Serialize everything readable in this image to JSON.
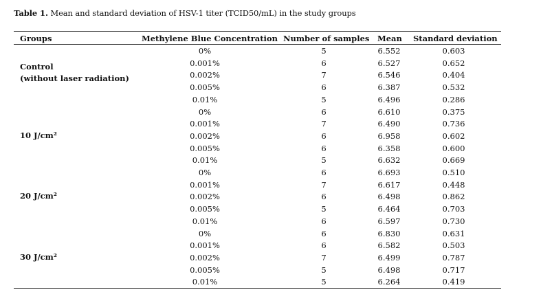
{
  "caption": {
    "label": "Table 1.",
    "text": " Mean and standard deviation of HSV-1 titer (TCID50/mL) in the study groups"
  },
  "columns": [
    "Groups",
    "Methylene Blue Concentration",
    "Number of samples",
    "Mean",
    "Standard deviation"
  ],
  "groups": [
    {
      "name_line1": "Control",
      "name_line2": "(without laser radiation)",
      "rows": [
        {
          "conc": "0%",
          "n": "5",
          "mean": "6.552",
          "sd": "0.603"
        },
        {
          "conc": "0.001%",
          "n": "6",
          "mean": "6.527",
          "sd": "0.652"
        },
        {
          "conc": "0.002%",
          "n": "7",
          "mean": "6.546",
          "sd": "0.404"
        },
        {
          "conc": "0.005%",
          "n": "6",
          "mean": "6.387",
          "sd": "0.532"
        },
        {
          "conc": "0.01%",
          "n": "5",
          "mean": "6.496",
          "sd": "0.286"
        }
      ]
    },
    {
      "name_line1": "10 J/cm²",
      "rows": [
        {
          "conc": "0%",
          "n": "6",
          "mean": "6.610",
          "sd": "0.375"
        },
        {
          "conc": "0.001%",
          "n": "7",
          "mean": "6.490",
          "sd": "0.736"
        },
        {
          "conc": "0.002%",
          "n": "6",
          "mean": "6.958",
          "sd": "0.602"
        },
        {
          "conc": "0.005%",
          "n": "6",
          "mean": "6.358",
          "sd": "0.600"
        },
        {
          "conc": "0.01%",
          "n": "5",
          "mean": "6.632",
          "sd": "0.669"
        }
      ]
    },
    {
      "name_line1": "20 J/cm²",
      "rows": [
        {
          "conc": "0%",
          "n": "6",
          "mean": "6.693",
          "sd": "0.510"
        },
        {
          "conc": "0.001%",
          "n": "7",
          "mean": "6.617",
          "sd": "0.448"
        },
        {
          "conc": "0.002%",
          "n": "6",
          "mean": "6.498",
          "sd": "0.862"
        },
        {
          "conc": "0.005%",
          "n": "5",
          "mean": "6.464",
          "sd": "0.703"
        },
        {
          "conc": "0.01%",
          "n": "6",
          "mean": "6.597",
          "sd": "0.730"
        }
      ]
    },
    {
      "name_line1": "30 J/cm²",
      "rows": [
        {
          "conc": "0%",
          "n": "6",
          "mean": "6.830",
          "sd": "0.631"
        },
        {
          "conc": "0.001%",
          "n": "6",
          "mean": "6.582",
          "sd": "0.503"
        },
        {
          "conc": "0.002%",
          "n": "7",
          "mean": "6.499",
          "sd": "0.787"
        },
        {
          "conc": "0.005%",
          "n": "5",
          "mean": "6.498",
          "sd": "0.717"
        },
        {
          "conc": "0.01%",
          "n": "5",
          "mean": "6.264",
          "sd": "0.419"
        }
      ]
    }
  ]
}
